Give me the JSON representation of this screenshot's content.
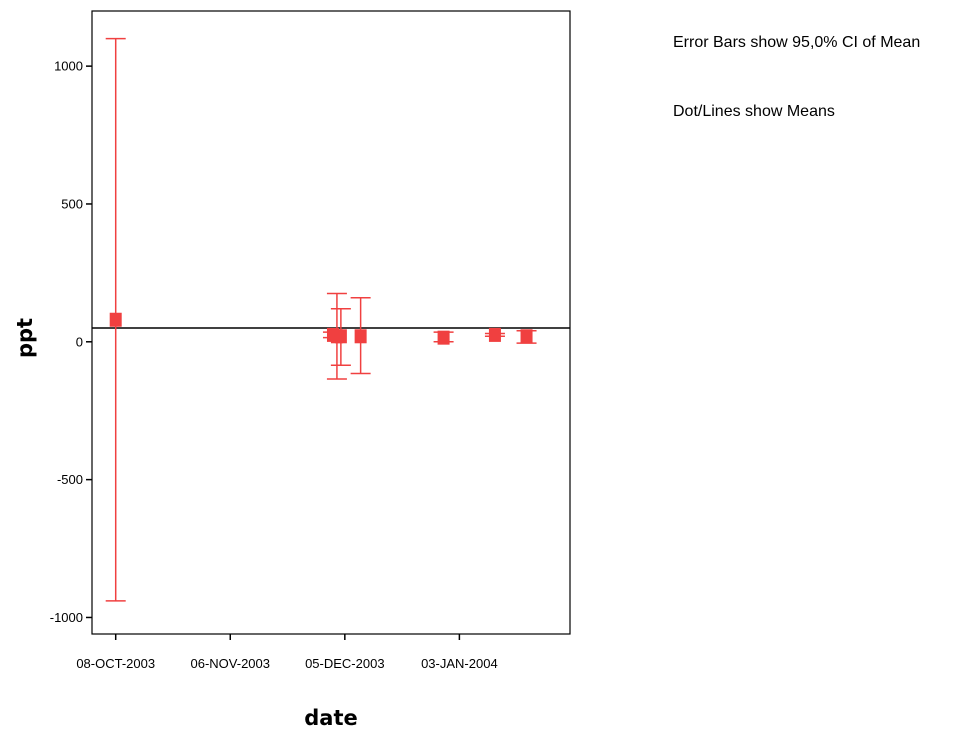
{
  "chart_data": {
    "type": "scatter",
    "subtype": "error-bar",
    "xlabel": "date",
    "ylabel": "ppt",
    "ylim": [
      -1060,
      1200
    ],
    "xlim": [
      "2003-10-02",
      "2004-01-31"
    ],
    "x_ticks": [
      {
        "date": "2003-10-08",
        "label": "08-OCT-2003"
      },
      {
        "date": "2003-11-06",
        "label": "06-NOV-2003"
      },
      {
        "date": "2003-12-05",
        "label": "05-DEC-2003"
      },
      {
        "date": "2004-01-03",
        "label": "03-JAN-2004"
      }
    ],
    "y_ticks": [
      1000,
      500,
      0,
      -500,
      -1000
    ],
    "reference_line_y": 50,
    "marker_color": "#f04040",
    "points": [
      {
        "date": "2003-10-08",
        "mean": 80,
        "lower": -940,
        "upper": 1100
      },
      {
        "date": "2003-12-02",
        "mean": 25,
        "lower": 15,
        "upper": 35
      },
      {
        "date": "2003-12-03",
        "mean": 20,
        "lower": -135,
        "upper": 175
      },
      {
        "date": "2003-12-04",
        "mean": 20,
        "lower": -85,
        "upper": 120
      },
      {
        "date": "2003-12-09",
        "mean": 20,
        "lower": -115,
        "upper": 160
      },
      {
        "date": "2003-12-30",
        "mean": 15,
        "lower": 0,
        "upper": 35
      },
      {
        "date": "2004-01-12",
        "mean": 25,
        "lower": 20,
        "upper": 30
      },
      {
        "date": "2004-01-20",
        "mean": 20,
        "lower": -5,
        "upper": 40
      }
    ],
    "notes": [
      "Error Bars show 95,0% CI of Mean",
      "Dot/Lines show Means"
    ]
  }
}
